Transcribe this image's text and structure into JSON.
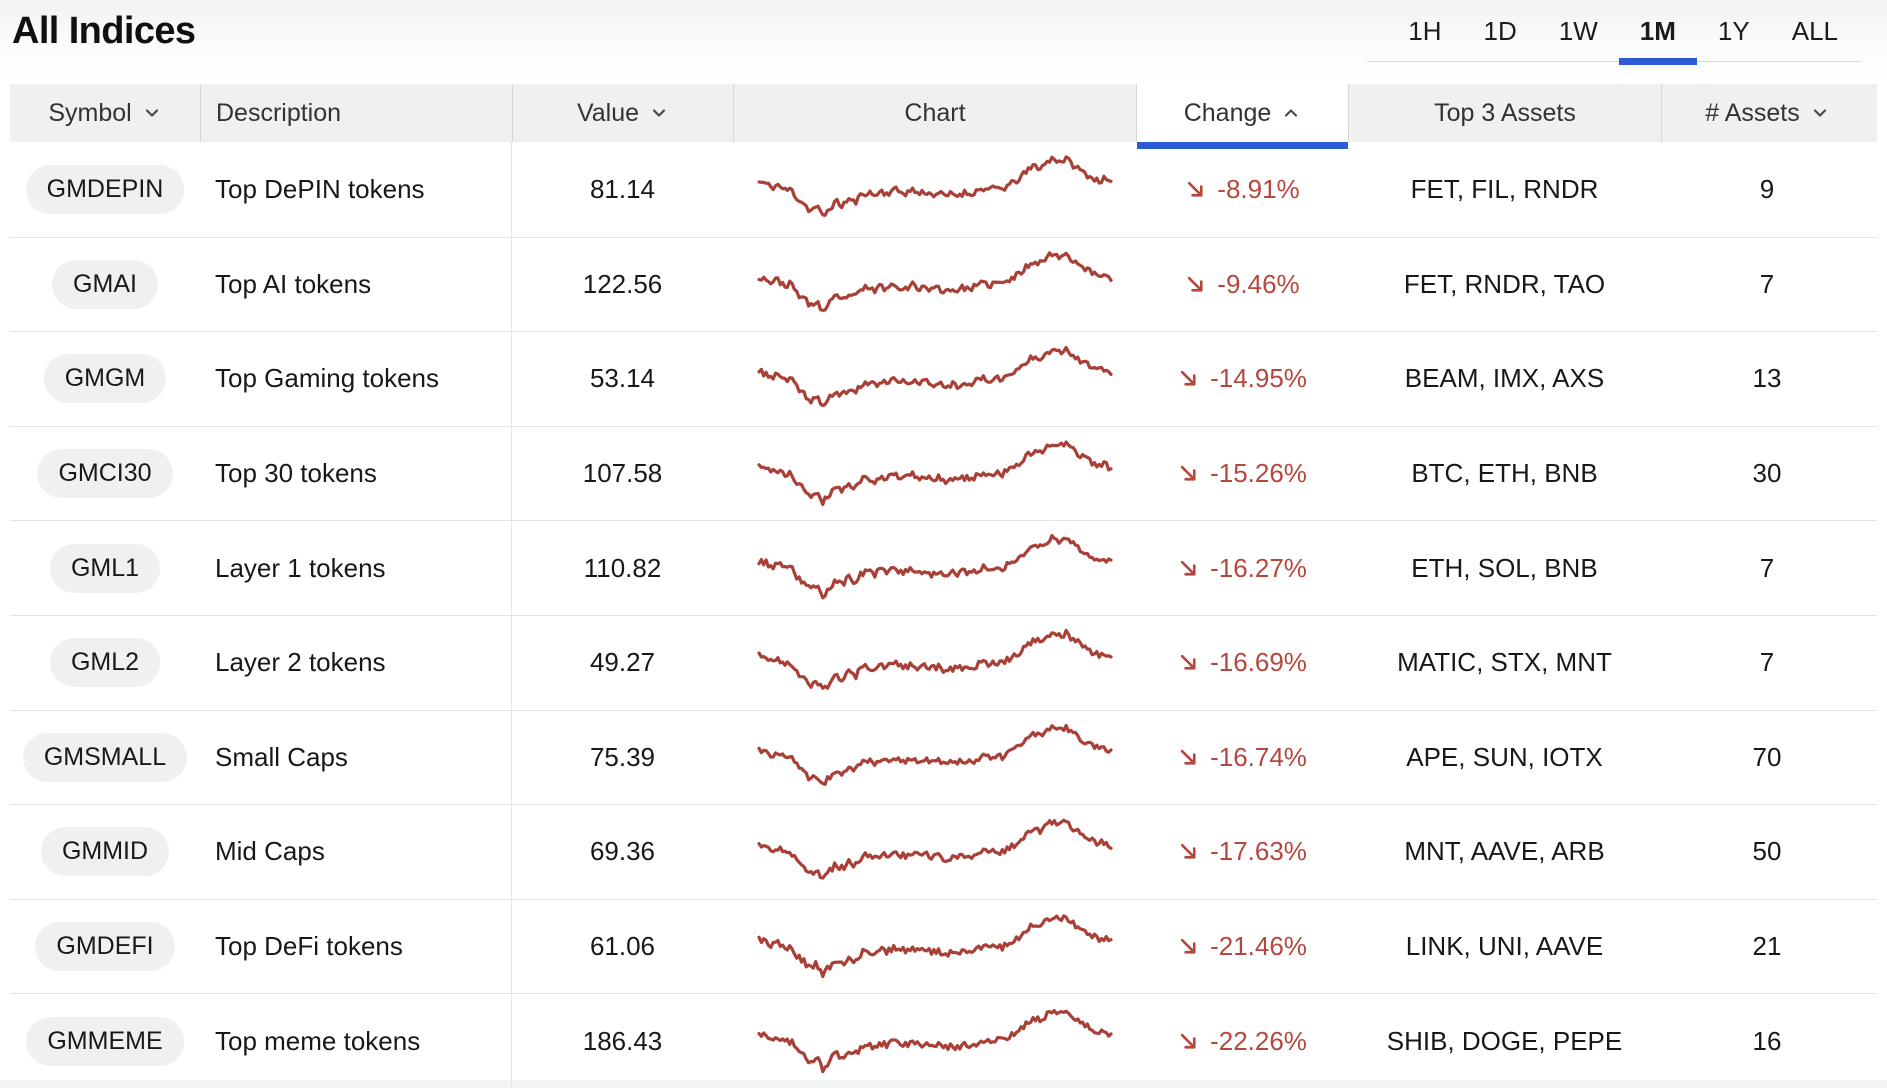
{
  "title": "All Indices",
  "colors": {
    "accent_blue": "#2b5bd7",
    "negative_red_text": "#b5473e",
    "sparkline_red": "#a94038",
    "header_bg": "#f0f0f0",
    "pill_bg": "#f0f0f1",
    "row_separator": "#e4e4e4"
  },
  "time_tabs": {
    "options": [
      "1H",
      "1D",
      "1W",
      "1M",
      "1Y",
      "ALL"
    ],
    "active": "1M"
  },
  "table": {
    "columns": [
      {
        "key": "symbol",
        "label": "Symbol",
        "sort": "down",
        "active": false
      },
      {
        "key": "description",
        "label": "Description",
        "sort": null,
        "active": false
      },
      {
        "key": "value",
        "label": "Value",
        "sort": "down",
        "active": false
      },
      {
        "key": "chart",
        "label": "Chart",
        "sort": null,
        "active": false
      },
      {
        "key": "change",
        "label": "Change",
        "sort": "up",
        "active": true
      },
      {
        "key": "top3",
        "label": "Top 3 Assets",
        "sort": null,
        "active": false
      },
      {
        "key": "assets",
        "label": "# Assets",
        "sort": "down",
        "active": false
      }
    ],
    "rows": [
      {
        "symbol": "GMDEPIN",
        "description": "Top DePIN tokens",
        "value": "81.14",
        "change": "-8.91%",
        "top3": "FET, FIL, RNDR",
        "assets": "9",
        "spark_seed": 11
      },
      {
        "symbol": "GMAI",
        "description": "Top AI tokens",
        "value": "122.56",
        "change": "-9.46%",
        "top3": "FET, RNDR, TAO",
        "assets": "7",
        "spark_seed": 23
      },
      {
        "symbol": "GMGM",
        "description": "Top Gaming tokens",
        "value": "53.14",
        "change": "-14.95%",
        "top3": "BEAM, IMX, AXS",
        "assets": "13",
        "spark_seed": 37
      },
      {
        "symbol": "GMCI30",
        "description": "Top 30 tokens",
        "value": "107.58",
        "change": "-15.26%",
        "top3": "BTC, ETH, BNB",
        "assets": "30",
        "spark_seed": 41
      },
      {
        "symbol": "GML1",
        "description": "Layer 1 tokens",
        "value": "110.82",
        "change": "-16.27%",
        "top3": "ETH, SOL, BNB",
        "assets": "7",
        "spark_seed": 53
      },
      {
        "symbol": "GML2",
        "description": "Layer 2 tokens",
        "value": "49.27",
        "change": "-16.69%",
        "top3": "MATIC, STX, MNT",
        "assets": "7",
        "spark_seed": 67
      },
      {
        "symbol": "GMSMALL",
        "description": "Small Caps",
        "value": "75.39",
        "change": "-16.74%",
        "top3": "APE, SUN, IOTX",
        "assets": "70",
        "spark_seed": 71
      },
      {
        "symbol": "GMMID",
        "description": "Mid Caps",
        "value": "69.36",
        "change": "-17.63%",
        "top3": "MNT, AAVE, ARB",
        "assets": "50",
        "spark_seed": 83
      },
      {
        "symbol": "GMDEFI",
        "description": "Top DeFi tokens",
        "value": "61.06",
        "change": "-21.46%",
        "top3": "LINK, UNI, AAVE",
        "assets": "21",
        "spark_seed": 89
      },
      {
        "symbol": "GMMEME",
        "description": "Top meme tokens",
        "value": "186.43",
        "change": "-22.26%",
        "top3": "SHIB, DOGE, PEPE",
        "assets": "16",
        "spark_seed": 97
      }
    ]
  },
  "chart_data": {
    "type": "line",
    "title": "1M performance sparklines (one per index row, unlabeled axes)",
    "x_range": [
      0,
      1
    ],
    "y_normalized_range": [
      0,
      1
    ],
    "grid": false,
    "legend": false,
    "line_color": "#a94038",
    "base_shape": [
      0.6,
      0.58,
      0.52,
      0.56,
      0.48,
      0.5,
      0.36,
      0.3,
      0.18,
      0.26,
      0.1,
      0.22,
      0.32,
      0.26,
      0.36,
      0.3,
      0.42,
      0.46,
      0.4,
      0.47,
      0.43,
      0.5,
      0.46,
      0.44,
      0.49,
      0.43,
      0.47,
      0.41,
      0.45,
      0.39,
      0.43,
      0.41,
      0.45,
      0.43,
      0.47,
      0.51,
      0.48,
      0.52,
      0.5,
      0.55,
      0.6,
      0.68,
      0.76,
      0.84,
      0.8,
      0.88,
      0.95,
      0.89,
      0.93,
      0.85,
      0.78,
      0.72,
      0.66,
      0.62,
      0.64,
      0.58
    ],
    "series": [
      {
        "name": "GMDEPIN",
        "seed": 11
      },
      {
        "name": "GMAI",
        "seed": 23
      },
      {
        "name": "GMGM",
        "seed": 37
      },
      {
        "name": "GMCI30",
        "seed": 41
      },
      {
        "name": "GML1",
        "seed": 53
      },
      {
        "name": "GML2",
        "seed": 67
      },
      {
        "name": "GMSMALL",
        "seed": 71
      },
      {
        "name": "GMMID",
        "seed": 83
      },
      {
        "name": "GMDEFI",
        "seed": 89
      },
      {
        "name": "GMMEME",
        "seed": 97
      }
    ]
  }
}
